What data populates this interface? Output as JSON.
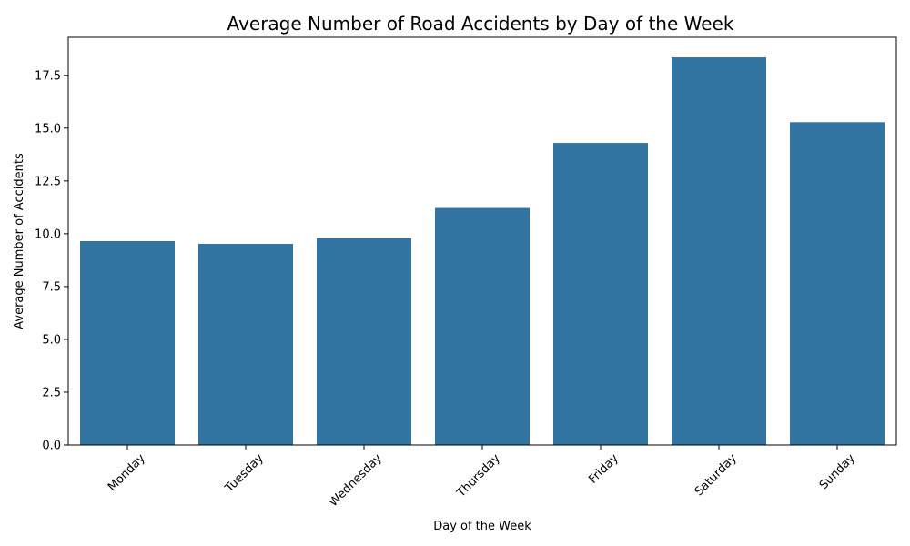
{
  "chart_data": {
    "type": "bar",
    "title": "Average Number of Road Accidents by Day of the Week",
    "xlabel": "Day of the Week",
    "ylabel": "Average Number of Accidents",
    "categories": [
      "Monday",
      "Tuesday",
      "Wednesday",
      "Thursday",
      "Friday",
      "Saturday",
      "Sunday"
    ],
    "values": [
      9.65,
      9.52,
      9.78,
      11.22,
      14.3,
      18.35,
      15.28
    ],
    "ylim": [
      0,
      19.3
    ],
    "yticks": [
      0.0,
      2.5,
      5.0,
      7.5,
      10.0,
      12.5,
      15.0,
      17.5
    ],
    "ytick_labels": [
      "0.0",
      "2.5",
      "5.0",
      "7.5",
      "10.0",
      "12.5",
      "15.0",
      "17.5"
    ],
    "grid": false,
    "bar_color": "#3274a1"
  }
}
